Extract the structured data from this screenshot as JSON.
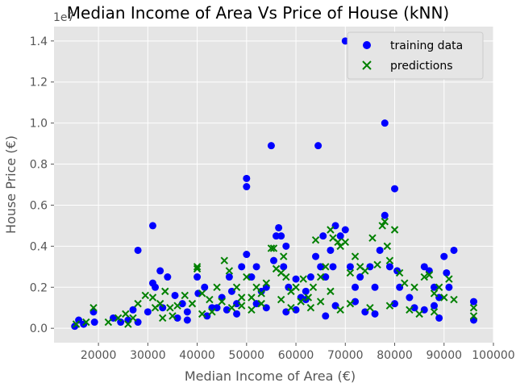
{
  "chart_data": {
    "type": "scatter",
    "title": "Median Income of Area Vs Price of House (kNN)",
    "xlabel": "Median Income of Area (€)",
    "ylabel": "House Price (€)",
    "y_offset_text": "1e7",
    "xlim": [
      11000,
      100000
    ],
    "ylim": [
      -0.07,
      1.47
    ],
    "xticks": [
      "20000",
      "30000",
      "40000",
      "50000",
      "60000",
      "70000",
      "80000",
      "90000",
      "100000"
    ],
    "xtick_values": [
      20000,
      30000,
      40000,
      50000,
      60000,
      70000,
      80000,
      90000,
      100000
    ],
    "yticks": [
      "0.0",
      "0.2",
      "0.4",
      "0.6",
      "0.8",
      "1.0",
      "1.2",
      "1.4"
    ],
    "ytick_values": [
      0.0,
      0.2,
      0.4,
      0.6,
      0.8,
      1.0,
      1.2,
      1.4
    ],
    "grid": true,
    "legend_position": "top-right",
    "colors": {
      "training": "#0000ff",
      "predictions": "#008000",
      "background": "#e5e5e5",
      "grid": "#ffffff"
    },
    "series": [
      {
        "name": "training data",
        "marker": "circle",
        "points": [
          [
            15200,
            0.01
          ],
          [
            16000,
            0.04
          ],
          [
            17000,
            0.02
          ],
          [
            19000,
            0.08
          ],
          [
            19200,
            0.03
          ],
          [
            23000,
            0.05
          ],
          [
            24500,
            0.03
          ],
          [
            26000,
            0.04
          ],
          [
            27000,
            0.09
          ],
          [
            28000,
            0.38
          ],
          [
            30000,
            0.08
          ],
          [
            31000,
            0.5
          ],
          [
            31000,
            0.22
          ],
          [
            31500,
            0.2
          ],
          [
            32500,
            0.28
          ],
          [
            33000,
            0.1
          ],
          [
            34000,
            0.25
          ],
          [
            35500,
            0.16
          ],
          [
            37000,
            0.12
          ],
          [
            38000,
            0.08
          ],
          [
            40000,
            0.25
          ],
          [
            40200,
            0.17
          ],
          [
            41500,
            0.2
          ],
          [
            43000,
            0.1
          ],
          [
            45000,
            0.15
          ],
          [
            46500,
            0.25
          ],
          [
            47000,
            0.18
          ],
          [
            48000,
            0.12
          ],
          [
            49000,
            0.3
          ],
          [
            50000,
            0.73
          ],
          [
            50000,
            0.69
          ],
          [
            50000,
            0.36
          ],
          [
            51000,
            0.25
          ],
          [
            52000,
            0.3
          ],
          [
            53000,
            0.18
          ],
          [
            54000,
            0.2
          ],
          [
            55000,
            0.89
          ],
          [
            55500,
            0.33
          ],
          [
            56000,
            0.45
          ],
          [
            56500,
            0.49
          ],
          [
            57000,
            0.45
          ],
          [
            57500,
            0.3
          ],
          [
            58000,
            0.4
          ],
          [
            58500,
            0.2
          ],
          [
            60000,
            0.24
          ],
          [
            61000,
            0.15
          ],
          [
            62000,
            0.18
          ],
          [
            63000,
            0.25
          ],
          [
            64000,
            0.35
          ],
          [
            64500,
            0.89
          ],
          [
            65000,
            0.3
          ],
          [
            65500,
            0.45
          ],
          [
            66000,
            0.25
          ],
          [
            67000,
            0.38
          ],
          [
            67500,
            0.3
          ],
          [
            68000,
            0.5
          ],
          [
            69000,
            0.45
          ],
          [
            70000,
            1.4
          ],
          [
            70000,
            0.48
          ],
          [
            71000,
            0.3
          ],
          [
            72000,
            0.2
          ],
          [
            73000,
            0.25
          ],
          [
            75000,
            0.3
          ],
          [
            76000,
            0.2
          ],
          [
            77000,
            0.38
          ],
          [
            78000,
            1.0
          ],
          [
            78000,
            0.55
          ],
          [
            79000,
            0.3
          ],
          [
            80000,
            0.68
          ],
          [
            80500,
            0.28
          ],
          [
            81000,
            0.2
          ],
          [
            83000,
            0.15
          ],
          [
            86000,
            0.3
          ],
          [
            87000,
            0.28
          ],
          [
            88000,
            0.2
          ],
          [
            89000,
            0.15
          ],
          [
            90000,
            0.35
          ],
          [
            90500,
            0.27
          ],
          [
            91000,
            0.2
          ],
          [
            92000,
            0.38
          ],
          [
            96000,
            0.13
          ],
          [
            96000,
            0.04
          ],
          [
            44000,
            0.1
          ],
          [
            52000,
            0.12
          ],
          [
            60000,
            0.09
          ],
          [
            68000,
            0.11
          ],
          [
            74000,
            0.08
          ],
          [
            84000,
            0.1
          ],
          [
            36000,
            0.05
          ],
          [
            42000,
            0.06
          ],
          [
            48000,
            0.07
          ],
          [
            58000,
            0.08
          ],
          [
            66000,
            0.06
          ],
          [
            76000,
            0.07
          ],
          [
            86000,
            0.09
          ],
          [
            89000,
            0.05
          ],
          [
            62000,
            0.14
          ],
          [
            54000,
            0.1
          ],
          [
            46000,
            0.09
          ],
          [
            38000,
            0.04
          ],
          [
            28000,
            0.03
          ],
          [
            72000,
            0.13
          ],
          [
            80000,
            0.12
          ],
          [
            88000,
            0.11
          ]
        ]
      },
      {
        "name": "predictions",
        "marker": "x",
        "points": [
          [
            15500,
            0.02
          ],
          [
            17500,
            0.03
          ],
          [
            19000,
            0.1
          ],
          [
            22000,
            0.03
          ],
          [
            24000,
            0.05
          ],
          [
            25500,
            0.07
          ],
          [
            27000,
            0.05
          ],
          [
            28000,
            0.12
          ],
          [
            29500,
            0.16
          ],
          [
            31000,
            0.15
          ],
          [
            31500,
            0.1
          ],
          [
            32500,
            0.12
          ],
          [
            33500,
            0.18
          ],
          [
            34500,
            0.1
          ],
          [
            36000,
            0.11
          ],
          [
            37500,
            0.16
          ],
          [
            39000,
            0.12
          ],
          [
            40000,
            0.3
          ],
          [
            40000,
            0.29
          ],
          [
            41000,
            0.17
          ],
          [
            42500,
            0.14
          ],
          [
            44000,
            0.2
          ],
          [
            45500,
            0.33
          ],
          [
            46500,
            0.28
          ],
          [
            48000,
            0.2
          ],
          [
            49000,
            0.15
          ],
          [
            50000,
            0.25
          ],
          [
            51000,
            0.15
          ],
          [
            52000,
            0.2
          ],
          [
            53000,
            0.17
          ],
          [
            54000,
            0.22
          ],
          [
            55000,
            0.39
          ],
          [
            55500,
            0.39
          ],
          [
            56000,
            0.29
          ],
          [
            57000,
            0.27
          ],
          [
            57500,
            0.35
          ],
          [
            58000,
            0.25
          ],
          [
            59000,
            0.18
          ],
          [
            60000,
            0.2
          ],
          [
            61500,
            0.24
          ],
          [
            62500,
            0.15
          ],
          [
            63500,
            0.2
          ],
          [
            64000,
            0.43
          ],
          [
            65000,
            0.25
          ],
          [
            66000,
            0.3
          ],
          [
            67000,
            0.48
          ],
          [
            67500,
            0.44
          ],
          [
            68500,
            0.42
          ],
          [
            69000,
            0.4
          ],
          [
            70000,
            0.42
          ],
          [
            71000,
            0.27
          ],
          [
            72000,
            0.35
          ],
          [
            73000,
            0.3
          ],
          [
            74000,
            0.28
          ],
          [
            75500,
            0.44
          ],
          [
            76500,
            0.31
          ],
          [
            77500,
            0.5
          ],
          [
            78000,
            0.52
          ],
          [
            78500,
            0.4
          ],
          [
            79000,
            0.33
          ],
          [
            80000,
            0.48
          ],
          [
            81000,
            0.27
          ],
          [
            82000,
            0.22
          ],
          [
            84000,
            0.2
          ],
          [
            86000,
            0.25
          ],
          [
            87000,
            0.26
          ],
          [
            88000,
            0.17
          ],
          [
            89000,
            0.2
          ],
          [
            90000,
            0.15
          ],
          [
            91000,
            0.24
          ],
          [
            92000,
            0.14
          ],
          [
            96000,
            0.1
          ],
          [
            96000,
            0.06
          ],
          [
            35000,
            0.06
          ],
          [
            43000,
            0.08
          ],
          [
            47000,
            0.1
          ],
          [
            53000,
            0.12
          ],
          [
            59000,
            0.1
          ],
          [
            63000,
            0.1
          ],
          [
            69000,
            0.09
          ],
          [
            75000,
            0.1
          ],
          [
            83000,
            0.09
          ],
          [
            85000,
            0.07
          ],
          [
            88000,
            0.08
          ],
          [
            45000,
            0.13
          ],
          [
            51000,
            0.09
          ],
          [
            57000,
            0.14
          ],
          [
            65000,
            0.13
          ],
          [
            71000,
            0.12
          ],
          [
            79000,
            0.11
          ],
          [
            67000,
            0.18
          ],
          [
            61000,
            0.13
          ],
          [
            49000,
            0.11
          ],
          [
            41000,
            0.07
          ],
          [
            33000,
            0.05
          ],
          [
            26000,
            0.02
          ]
        ]
      }
    ]
  }
}
